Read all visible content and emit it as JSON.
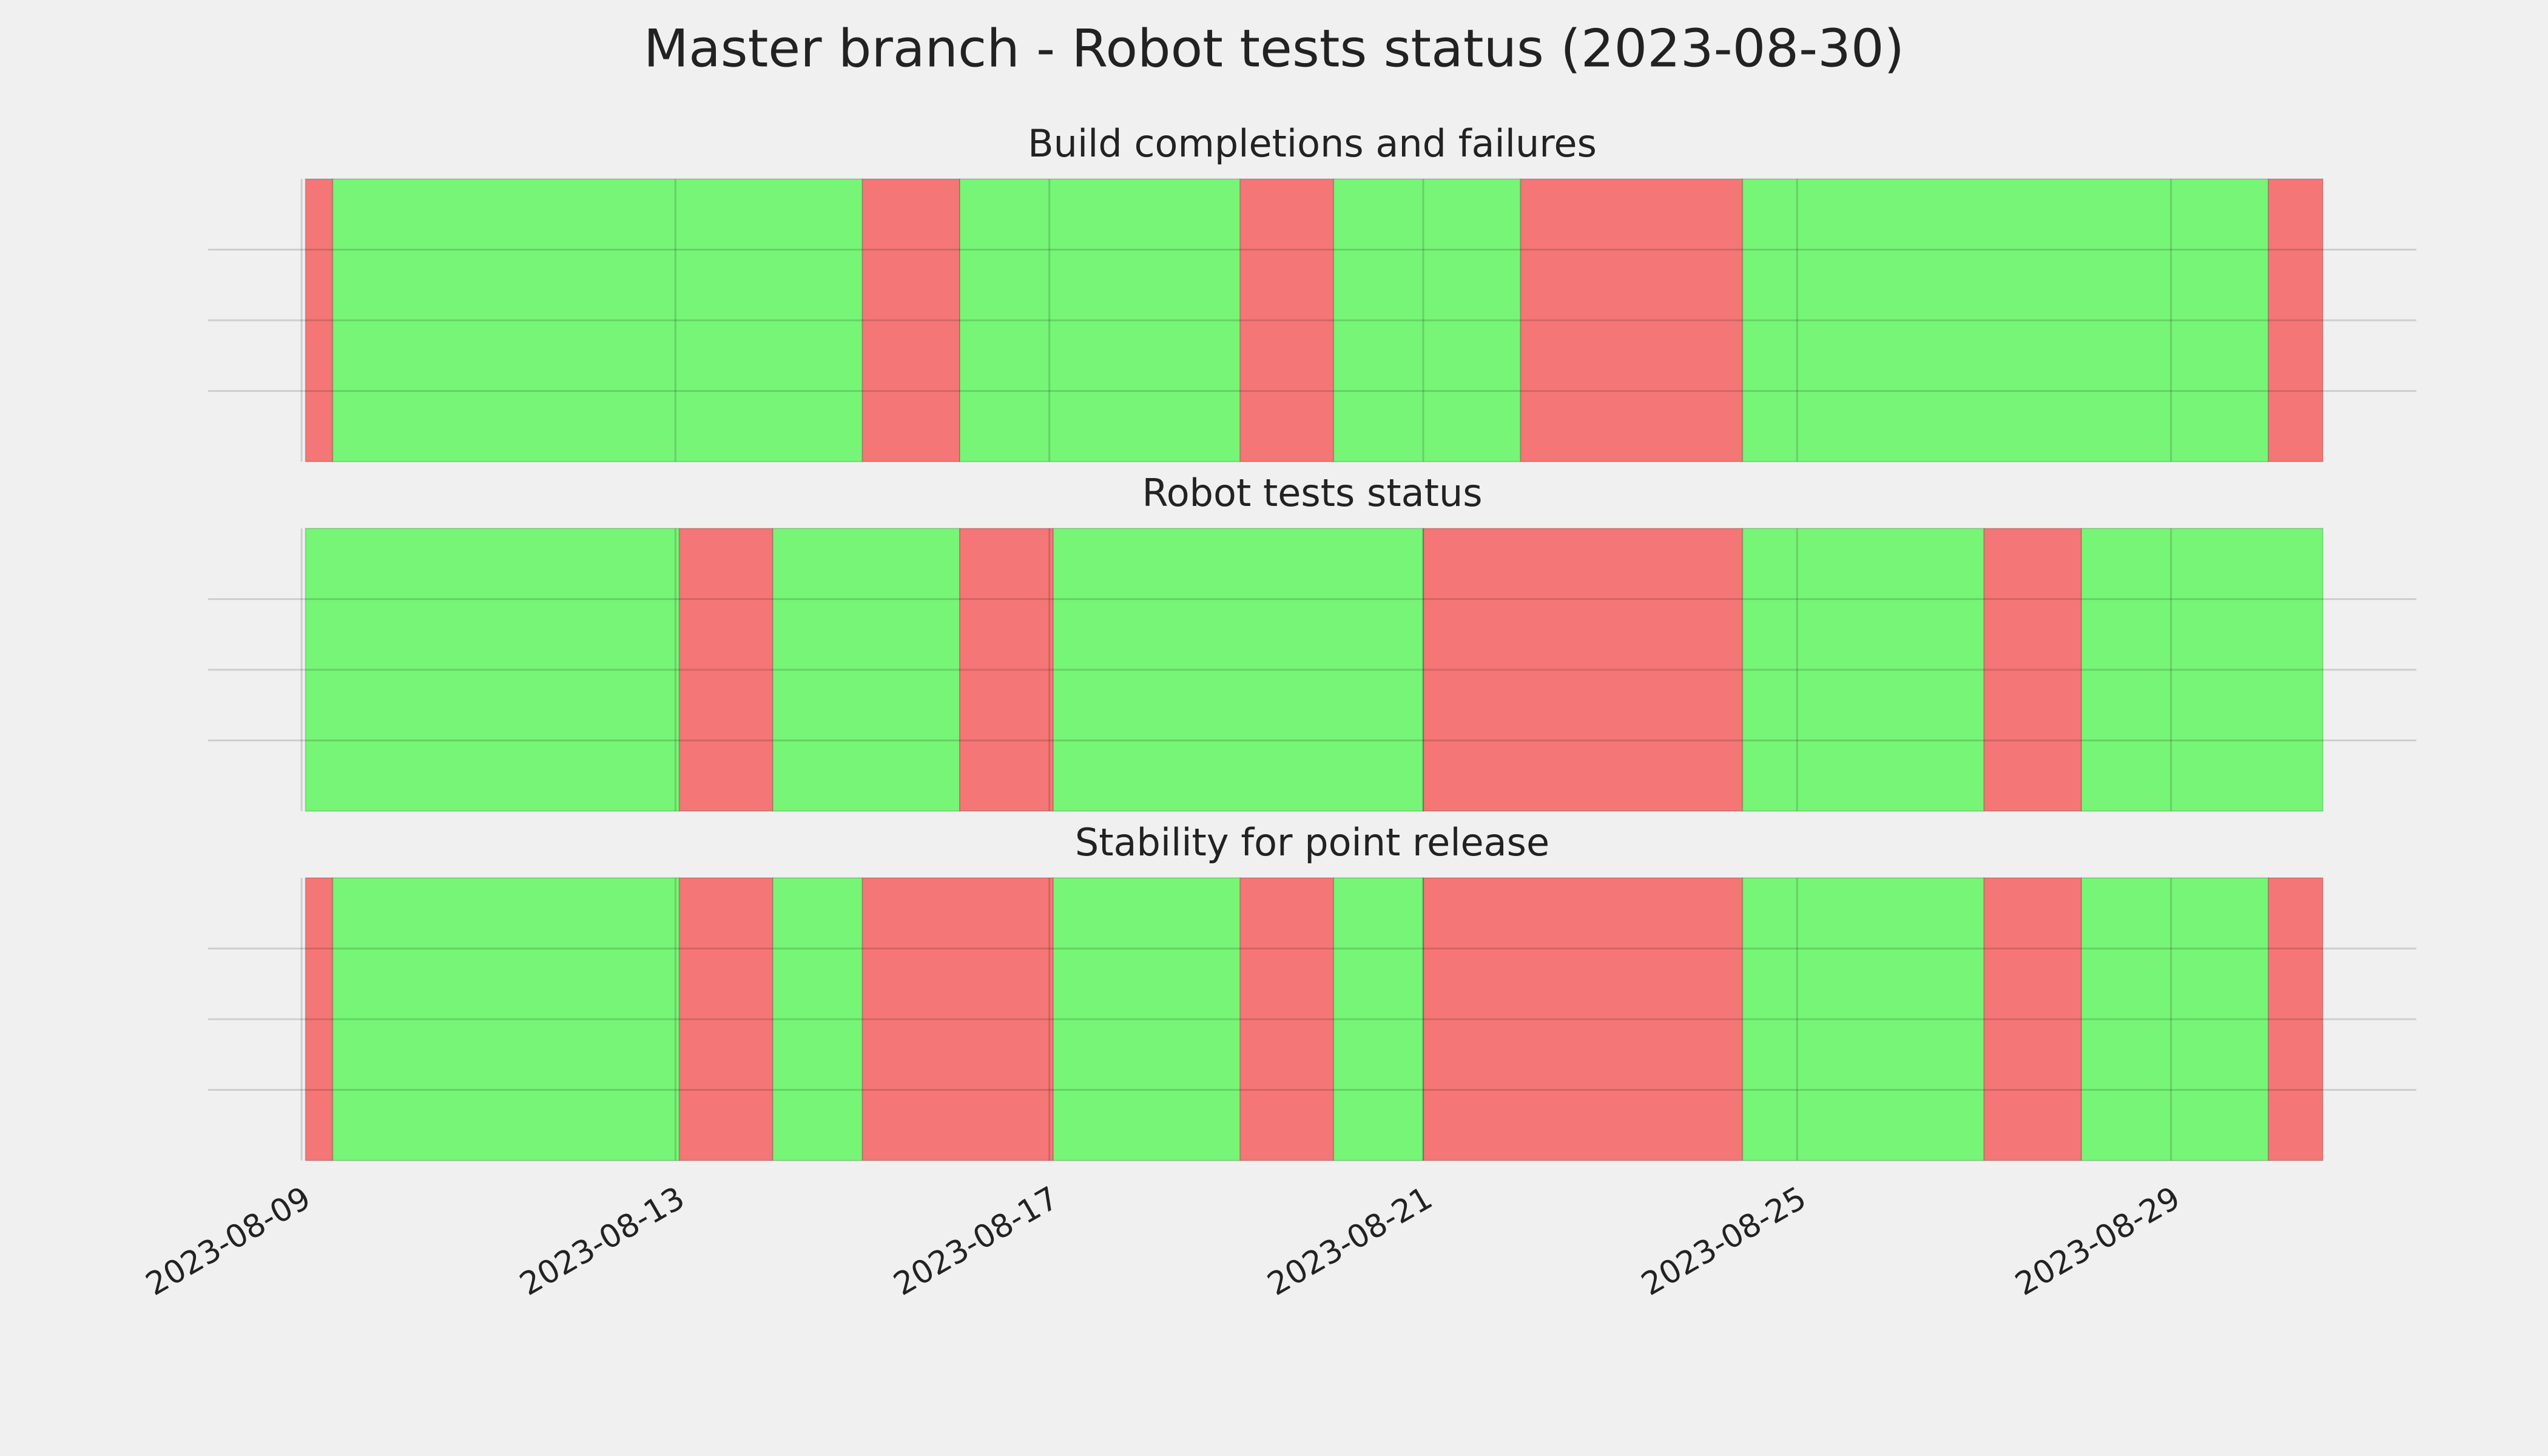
{
  "title": "Master branch - Robot tests status (2023-08-30)",
  "chart_data": [
    {
      "type": "timeline",
      "title": "Build completions and failures",
      "xlim": [
        "2023-08-08T00:00",
        "2023-08-31T15:00"
      ],
      "xticks": [
        "2023-08-09",
        "2023-08-13",
        "2023-08-17",
        "2023-08-21",
        "2023-08-25",
        "2023-08-29"
      ],
      "ylim": [
        0,
        1
      ],
      "yticks": [
        0.25,
        0.5,
        0.75
      ],
      "grid": true,
      "segments": [
        {
          "start": "2023-08-09T01:00",
          "end": "2023-08-09T08:00",
          "color": "#f57676"
        },
        {
          "start": "2023-08-09T08:00",
          "end": "2023-08-15T00:00",
          "color": "#76f576"
        },
        {
          "start": "2023-08-15T00:00",
          "end": "2023-08-16T01:00",
          "color": "#f57676"
        },
        {
          "start": "2023-08-16T01:00",
          "end": "2023-08-19T01:00",
          "color": "#76f576"
        },
        {
          "start": "2023-08-19T01:00",
          "end": "2023-08-20T01:00",
          "color": "#f57676"
        },
        {
          "start": "2023-08-20T01:00",
          "end": "2023-08-22T01:00",
          "color": "#76f576"
        },
        {
          "start": "2023-08-22T01:00",
          "end": "2023-08-24T10:00",
          "color": "#f57676"
        },
        {
          "start": "2023-08-24T10:00",
          "end": "2023-08-30T01:00",
          "color": "#76f576"
        },
        {
          "start": "2023-08-30T01:00",
          "end": "2023-08-30T15:00",
          "color": "#f57676"
        }
      ]
    },
    {
      "type": "timeline",
      "title": "Robot tests status",
      "xlim": [
        "2023-08-08T00:00",
        "2023-08-31T15:00"
      ],
      "xticks": [
        "2023-08-09",
        "2023-08-13",
        "2023-08-17",
        "2023-08-21",
        "2023-08-25",
        "2023-08-29"
      ],
      "ylim": [
        0,
        1
      ],
      "yticks": [
        0.25,
        0.5,
        0.75
      ],
      "grid": true,
      "segments": [
        {
          "start": "2023-08-09T01:00",
          "end": "2023-08-13T01:00",
          "color": "#76f576"
        },
        {
          "start": "2023-08-13T01:00",
          "end": "2023-08-14T01:00",
          "color": "#f57676"
        },
        {
          "start": "2023-08-14T01:00",
          "end": "2023-08-16T01:00",
          "color": "#76f576"
        },
        {
          "start": "2023-08-16T01:00",
          "end": "2023-08-17T01:00",
          "color": "#f57676"
        },
        {
          "start": "2023-08-17T01:00",
          "end": "2023-08-21T00:00",
          "color": "#76f576"
        },
        {
          "start": "2023-08-21T00:00",
          "end": "2023-08-24T10:00",
          "color": "#f57676"
        },
        {
          "start": "2023-08-24T10:00",
          "end": "2023-08-27T00:00",
          "color": "#76f576"
        },
        {
          "start": "2023-08-27T00:00",
          "end": "2023-08-28T01:00",
          "color": "#f57676"
        },
        {
          "start": "2023-08-28T01:00",
          "end": "2023-08-30T15:00",
          "color": "#76f576"
        }
      ]
    },
    {
      "type": "timeline",
      "title": "Stability for point release",
      "xlim": [
        "2023-08-08T00:00",
        "2023-08-31T15:00"
      ],
      "xticks": [
        "2023-08-09",
        "2023-08-13",
        "2023-08-17",
        "2023-08-21",
        "2023-08-25",
        "2023-08-29"
      ],
      "ylim": [
        0,
        1
      ],
      "yticks": [
        0.25,
        0.5,
        0.75
      ],
      "grid": true,
      "segments": [
        {
          "start": "2023-08-09T01:00",
          "end": "2023-08-09T08:00",
          "color": "#f57676"
        },
        {
          "start": "2023-08-09T08:00",
          "end": "2023-08-13T01:00",
          "color": "#76f576"
        },
        {
          "start": "2023-08-13T01:00",
          "end": "2023-08-14T01:00",
          "color": "#f57676"
        },
        {
          "start": "2023-08-14T01:00",
          "end": "2023-08-15T00:00",
          "color": "#76f576"
        },
        {
          "start": "2023-08-15T00:00",
          "end": "2023-08-17T01:00",
          "color": "#f57676"
        },
        {
          "start": "2023-08-17T01:00",
          "end": "2023-08-19T01:00",
          "color": "#76f576"
        },
        {
          "start": "2023-08-19T01:00",
          "end": "2023-08-20T01:00",
          "color": "#f57676"
        },
        {
          "start": "2023-08-20T01:00",
          "end": "2023-08-21T00:00",
          "color": "#76f576"
        },
        {
          "start": "2023-08-21T00:00",
          "end": "2023-08-24T10:00",
          "color": "#f57676"
        },
        {
          "start": "2023-08-24T10:00",
          "end": "2023-08-27T00:00",
          "color": "#76f576"
        },
        {
          "start": "2023-08-27T00:00",
          "end": "2023-08-28T01:00",
          "color": "#f57676"
        },
        {
          "start": "2023-08-28T01:00",
          "end": "2023-08-30T01:00",
          "color": "#76f576"
        },
        {
          "start": "2023-08-30T01:00",
          "end": "2023-08-30T15:00",
          "color": "#f57676"
        }
      ]
    }
  ]
}
